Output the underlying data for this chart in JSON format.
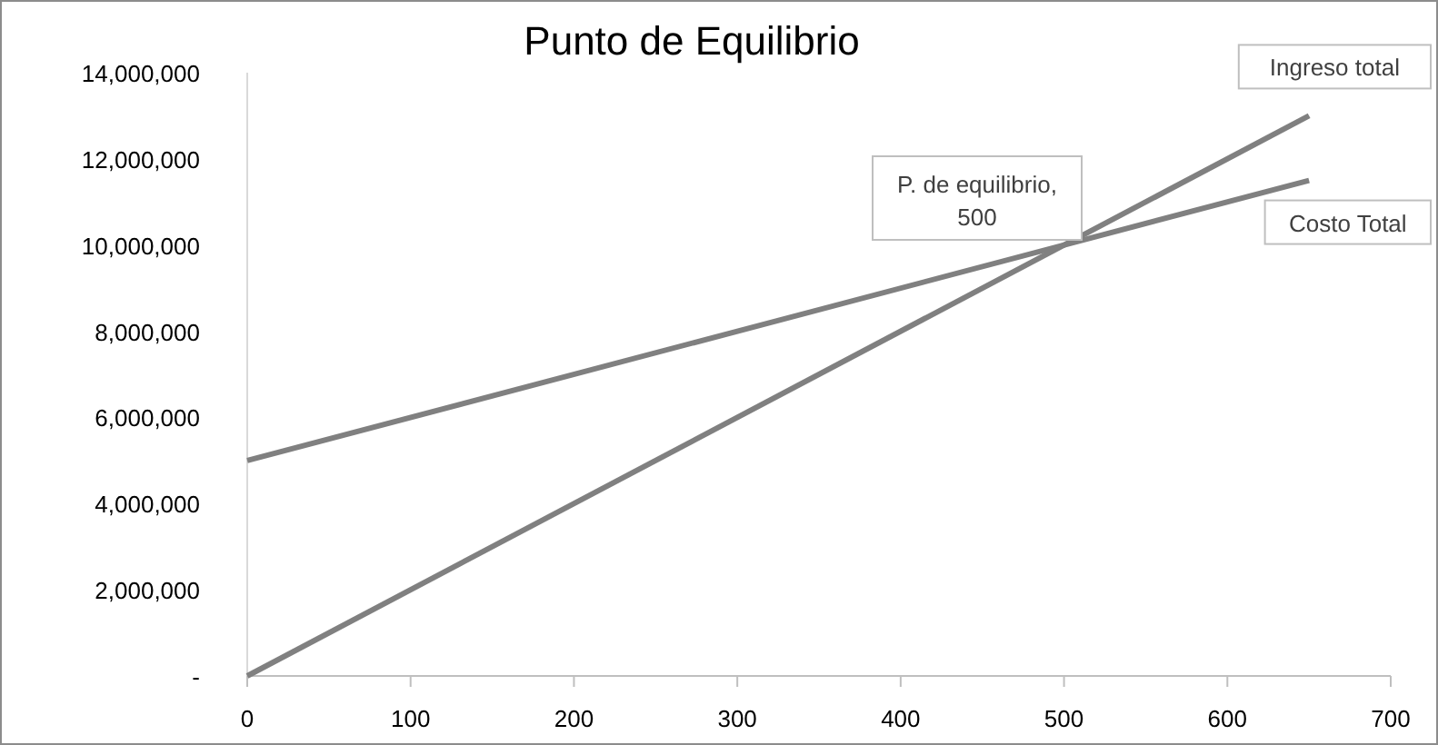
{
  "chart_data": {
    "type": "line",
    "title": "Punto de Equilibrio",
    "x": [
      0,
      650
    ],
    "series": [
      {
        "name": "Ingreso total",
        "color": "#808080",
        "values": [
          0,
          13000000
        ]
      },
      {
        "name": "Costo Total",
        "color": "#808080",
        "values": [
          5000000,
          11500000
        ]
      }
    ],
    "xlim": [
      0,
      700
    ],
    "xticks": [
      0,
      100,
      200,
      300,
      400,
      500,
      600,
      700
    ],
    "ylim": [
      0,
      14000000
    ],
    "yticks": [
      {
        "value": 0,
        "label": "-"
      },
      {
        "value": 2000000,
        "label": "2,000,000"
      },
      {
        "value": 4000000,
        "label": "4,000,000"
      },
      {
        "value": 6000000,
        "label": "6,000,000"
      },
      {
        "value": 8000000,
        "label": "8,000,000"
      },
      {
        "value": 10000000,
        "label": "10,000,000"
      },
      {
        "value": 12000000,
        "label": "12,000,000"
      },
      {
        "value": 14000000,
        "label": "14,000,000"
      }
    ],
    "annotations": [
      "P. de equilibrio, 500"
    ],
    "marker": "none",
    "line_style": "solid"
  }
}
